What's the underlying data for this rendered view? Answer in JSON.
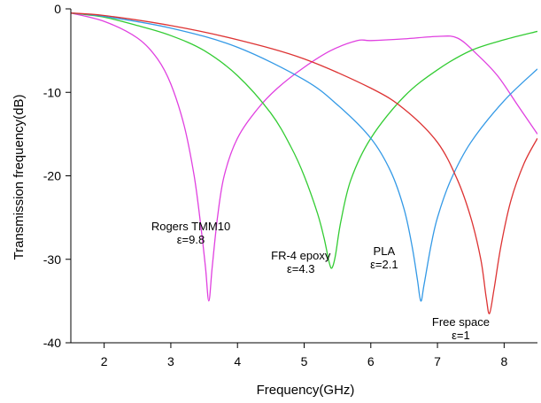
{
  "chart_data": {
    "type": "line",
    "xlabel": "Frequency(GHz)",
    "ylabel": "Transmission frequency(dB)",
    "xlim": [
      1.5,
      8.5
    ],
    "ylim": [
      -40,
      0
    ],
    "xticks": [
      2,
      3,
      4,
      5,
      6,
      7,
      8
    ],
    "yticks": [
      0,
      -10,
      -20,
      -30,
      -40
    ],
    "grid": false,
    "series": [
      {
        "color": "#e040e0",
        "x": [
          1.5,
          2.0,
          2.5,
          2.8,
          3.0,
          3.2,
          3.35,
          3.45,
          3.52,
          3.57,
          3.62,
          3.7,
          3.8,
          4.0,
          4.3,
          4.6,
          5.0,
          5.4,
          5.8,
          6.0,
          6.5,
          7.0,
          7.3,
          7.6,
          7.9,
          8.2,
          8.5
        ],
        "y": [
          -0.5,
          -1.5,
          -3.5,
          -6.0,
          -9.0,
          -14.0,
          -20.0,
          -26.0,
          -31.0,
          -35.0,
          -31.0,
          -25.0,
          -20.0,
          -15.5,
          -12.0,
          -9.5,
          -7.0,
          -5.0,
          -3.8,
          -3.8,
          -3.6,
          -3.3,
          -3.5,
          -5.5,
          -8.0,
          -11.5,
          -15.0
        ]
      },
      {
        "color": "#33cc33",
        "x": [
          1.5,
          2.0,
          2.5,
          3.0,
          3.5,
          4.0,
          4.5,
          4.8,
          5.0,
          5.2,
          5.3,
          5.38,
          5.42,
          5.47,
          5.55,
          5.7,
          6.0,
          6.5,
          7.0,
          7.5,
          8.0,
          8.5
        ],
        "y": [
          -0.5,
          -1.0,
          -2.0,
          -3.2,
          -5.0,
          -8.0,
          -12.5,
          -16.5,
          -20.0,
          -24.5,
          -27.5,
          -30.5,
          -31.0,
          -29.5,
          -25.5,
          -20.5,
          -15.5,
          -10.5,
          -7.3,
          -5.0,
          -3.7,
          -2.7
        ]
      },
      {
        "color": "#3399e6",
        "x": [
          1.5,
          2.0,
          3.0,
          4.0,
          5.0,
          5.5,
          6.0,
          6.3,
          6.5,
          6.62,
          6.7,
          6.75,
          6.8,
          6.9,
          7.0,
          7.2,
          7.5,
          8.0,
          8.5
        ],
        "y": [
          -0.5,
          -0.9,
          -2.3,
          -4.6,
          -8.5,
          -11.5,
          -15.5,
          -19.5,
          -24.0,
          -28.5,
          -32.5,
          -35.0,
          -33.0,
          -28.5,
          -25.0,
          -20.5,
          -16.0,
          -11.0,
          -7.2
        ]
      },
      {
        "color": "#dd3333",
        "x": [
          1.5,
          2.0,
          3.0,
          4.0,
          5.0,
          6.0,
          6.5,
          7.0,
          7.3,
          7.5,
          7.65,
          7.73,
          7.78,
          7.85,
          7.95,
          8.1,
          8.3,
          8.5
        ],
        "y": [
          -0.5,
          -0.8,
          -2.0,
          -3.7,
          -6.0,
          -9.5,
          -12.0,
          -16.0,
          -20.5,
          -25.0,
          -30.0,
          -34.5,
          -36.5,
          -33.5,
          -28.5,
          -23.0,
          -18.5,
          -15.5
        ]
      }
    ],
    "annotations": [
      {
        "lines": [
          "Rogers TMM10",
          "ε=9.8"
        ],
        "x": 3.3,
        "y": -26.5
      },
      {
        "lines": [
          "FR-4 epoxy",
          "ε=4.3"
        ],
        "x": 4.95,
        "y": -30.0
      },
      {
        "lines": [
          "PLA",
          "ε=2.1"
        ],
        "x": 6.2,
        "y": -29.5
      },
      {
        "lines": [
          "Free space",
          "ε=1"
        ],
        "x": 7.35,
        "y": -38.0
      }
    ]
  }
}
